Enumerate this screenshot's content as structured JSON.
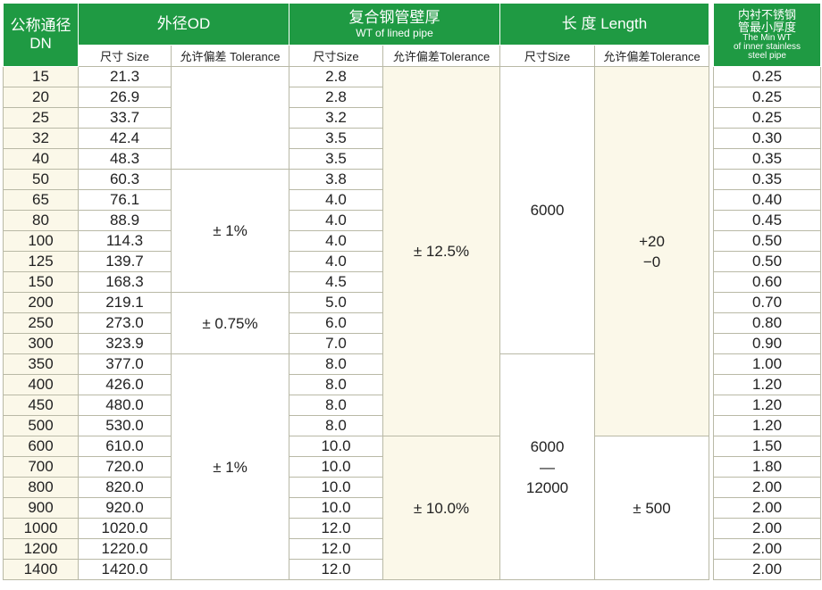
{
  "header": {
    "dn_title": "公称通径",
    "dn_sub": "DN",
    "od_title": "外径OD",
    "wt_title": "复合钢管壁厚",
    "wt_sub": "WT of lined pipe",
    "length_title": "长  度  Length",
    "min_title_1": "内衬不锈钢",
    "min_title_2": "管最小厚度",
    "min_sub_1": "The Min WT",
    "min_sub_2": "of inner stainless",
    "min_sub_3": "steel pipe",
    "od_size": "尺寸 Size",
    "od_tol": "允许偏差 Tolerance",
    "wt_size": "尺寸Size",
    "wt_tol": "允许偏差Tolerance",
    "len_size": "尺寸Size",
    "len_tol": "允许偏差Tolerance"
  },
  "groups": {
    "od_tol_1": "± 1%",
    "od_tol_2": "± 0.75%",
    "od_tol_3": "± 1%",
    "wt_tol_1": "± 12.5%",
    "wt_tol_2": "± 10.0%",
    "len_size_1": "6000",
    "len_size_2a": "6000",
    "len_size_2b": "—",
    "len_size_2c": "12000",
    "len_tol_1a": "+20",
    "len_tol_1b": "−0",
    "len_tol_2": "± 500"
  },
  "rows": [
    {
      "dn": "15",
      "od": "21.3",
      "wt": "2.8",
      "min": "0.25"
    },
    {
      "dn": "20",
      "od": "26.9",
      "wt": "2.8",
      "min": "0.25"
    },
    {
      "dn": "25",
      "od": "33.7",
      "wt": "3.2",
      "min": "0.25"
    },
    {
      "dn": "32",
      "od": "42.4",
      "wt": "3.5",
      "min": "0.30"
    },
    {
      "dn": "40",
      "od": "48.3",
      "wt": "3.5",
      "min": "0.35"
    },
    {
      "dn": "50",
      "od": "60.3",
      "wt": "3.8",
      "min": "0.35"
    },
    {
      "dn": "65",
      "od": "76.1",
      "wt": "4.0",
      "min": "0.40"
    },
    {
      "dn": "80",
      "od": "88.9",
      "wt": "4.0",
      "min": "0.45"
    },
    {
      "dn": "100",
      "od": "114.3",
      "wt": "4.0",
      "min": "0.50"
    },
    {
      "dn": "125",
      "od": "139.7",
      "wt": "4.0",
      "min": "0.50"
    },
    {
      "dn": "150",
      "od": "168.3",
      "wt": "4.5",
      "min": "0.60"
    },
    {
      "dn": "200",
      "od": "219.1",
      "wt": "5.0",
      "min": "0.70"
    },
    {
      "dn": "250",
      "od": "273.0",
      "wt": "6.0",
      "min": "0.80"
    },
    {
      "dn": "300",
      "od": "323.9",
      "wt": "7.0",
      "min": "0.90"
    },
    {
      "dn": "350",
      "od": "377.0",
      "wt": "8.0",
      "min": "1.00"
    },
    {
      "dn": "400",
      "od": "426.0",
      "wt": "8.0",
      "min": "1.20"
    },
    {
      "dn": "450",
      "od": "480.0",
      "wt": "8.0",
      "min": "1.20"
    },
    {
      "dn": "500",
      "od": "530.0",
      "wt": "8.0",
      "min": "1.20"
    },
    {
      "dn": "600",
      "od": "610.0",
      "wt": "10.0",
      "min": "1.50"
    },
    {
      "dn": "700",
      "od": "720.0",
      "wt": "10.0",
      "min": "1.80"
    },
    {
      "dn": "800",
      "od": "820.0",
      "wt": "10.0",
      "min": "2.00"
    },
    {
      "dn": "900",
      "od": "920.0",
      "wt": "10.0",
      "min": "2.00"
    },
    {
      "dn": "1000",
      "od": "1020.0",
      "wt": "12.0",
      "min": "2.00"
    },
    {
      "dn": "1200",
      "od": "1220.0",
      "wt": "12.0",
      "min": "2.00"
    },
    {
      "dn": "1400",
      "od": "1420.0",
      "wt": "12.0",
      "min": "2.00"
    }
  ],
  "colors": {
    "header_green": "#1f9a43",
    "cream": "#fbf8e9",
    "grid": "#b9b9a6"
  }
}
